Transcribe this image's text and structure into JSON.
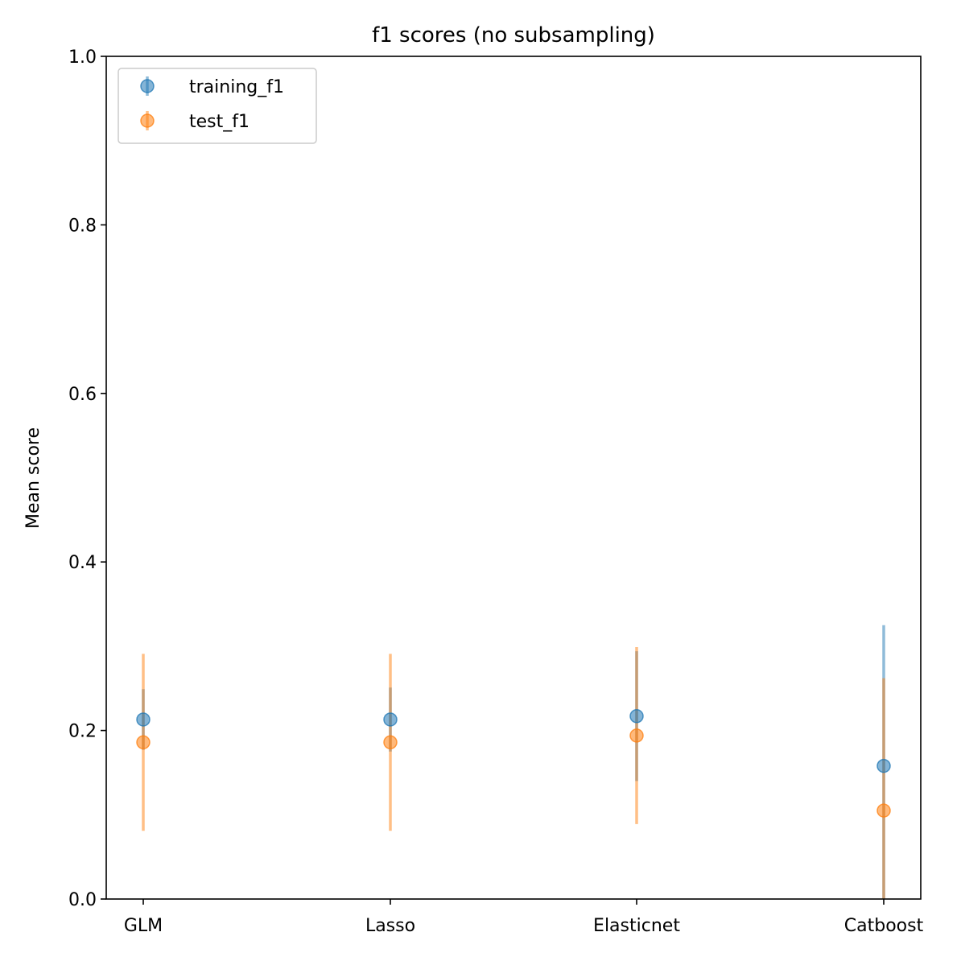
{
  "chart_data": {
    "type": "scatter",
    "title": "f1 scores (no subsampling)",
    "xlabel": "",
    "ylabel": "Mean score",
    "categories": [
      "GLM",
      "Lasso",
      "Elasticnet",
      "Catboost"
    ],
    "ylim": [
      0,
      1
    ],
    "yticks": [
      "0.0",
      "0.2",
      "0.4",
      "0.6",
      "0.8",
      "1.0"
    ],
    "grid": false,
    "legend_position": "top-left",
    "series": [
      {
        "name": "training_f1",
        "color": "#1f77b4",
        "values": [
          0.213,
          0.213,
          0.217,
          0.158
        ],
        "error_low": [
          0.177,
          0.175,
          0.14,
          0.0
        ],
        "error_high": [
          0.249,
          0.251,
          0.294,
          0.325
        ]
      },
      {
        "name": "test_f1",
        "color": "#ff7f0e",
        "values": [
          0.186,
          0.186,
          0.194,
          0.105
        ],
        "error_low": [
          0.081,
          0.081,
          0.089,
          0.0
        ],
        "error_high": [
          0.291,
          0.291,
          0.299,
          0.262
        ]
      }
    ]
  }
}
